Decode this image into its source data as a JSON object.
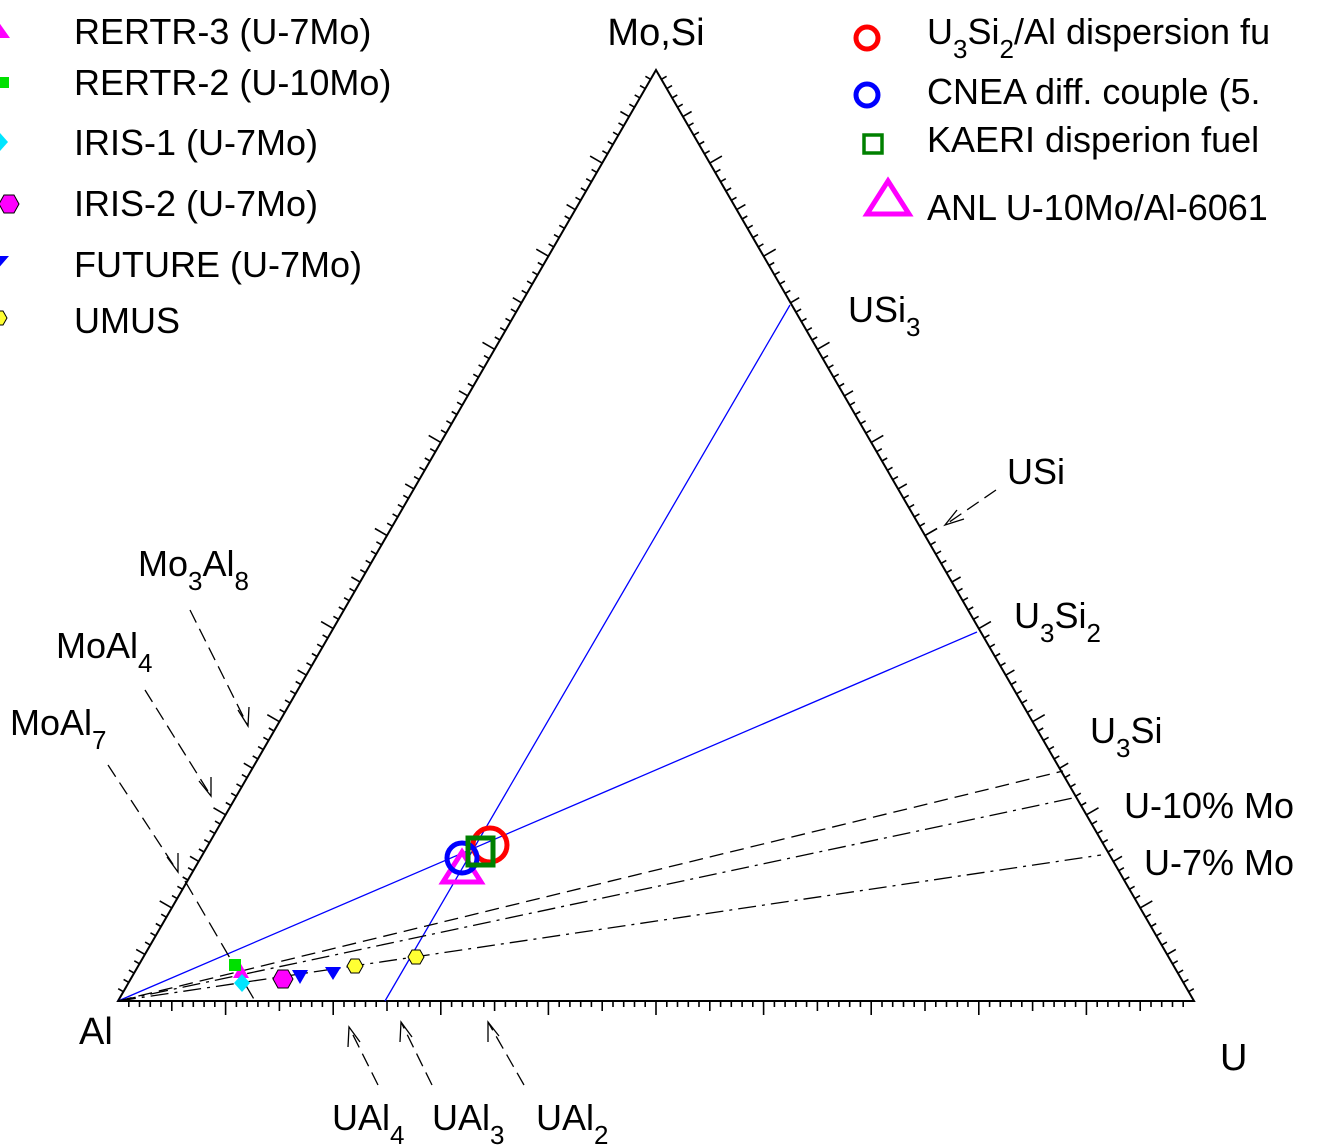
{
  "vertices": {
    "top": "Mo,Si",
    "left": "Al",
    "right": "U"
  },
  "legend_left": [
    {
      "label": "RERTR-3 (U-7Mo)",
      "marker": "triangle-up",
      "color": "#ff00ff"
    },
    {
      "label": "RERTR-2 (U-10Mo)",
      "marker": "square",
      "color": "#00e000"
    },
    {
      "label": "IRIS-1 (U-7Mo)",
      "marker": "diamond",
      "color": "#00e5ff"
    },
    {
      "label": "IRIS-2 (U-7Mo)",
      "marker": "hexagon",
      "color": "#ff00ff"
    },
    {
      "label": "FUTURE (U-7Mo)",
      "marker": "triangle-down",
      "color": "#0000ff"
    },
    {
      "label": "UMUS",
      "marker": "hexagon",
      "color": "#ffff33"
    }
  ],
  "legend_right": [
    {
      "label": "U3Si2/Al dispersion fu",
      "marker": "circle",
      "color": "#ff0000"
    },
    {
      "label": "CNEA diff. couple (5.",
      "marker": "circle",
      "color": "#0000ff"
    },
    {
      "label": "KAERI disperion fuel",
      "marker": "square",
      "color": "#008000"
    },
    {
      "label": "ANL U-10Mo/Al-6061",
      "marker": "triangle-up",
      "color": "#ff00ff"
    }
  ],
  "phase_labels": {
    "usi3": "USi3",
    "usi": "USi",
    "u3si2": "U3Si2",
    "u3si": "U3Si",
    "u10mo": "U-10% Mo",
    "u7mo": "U-7% Mo",
    "mo3al8": "Mo3Al8",
    "moal4": "MoAl4",
    "moal7": "MoAl7",
    "ual4": "UAl4",
    "ual3": "UAl3",
    "ual2": "UAl2"
  },
  "colors": {
    "tie_line": "#0000ff",
    "axis": "#000000"
  }
}
